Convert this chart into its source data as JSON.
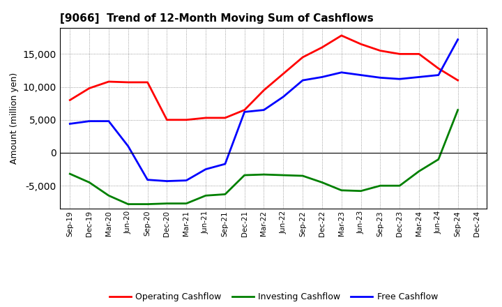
{
  "title": "[9066]  Trend of 12-Month Moving Sum of Cashflows",
  "ylabel": "Amount (million yen)",
  "x_labels": [
    "Sep-19",
    "Dec-19",
    "Mar-20",
    "Jun-20",
    "Sep-20",
    "Dec-20",
    "Mar-21",
    "Jun-21",
    "Sep-21",
    "Dec-21",
    "Mar-22",
    "Jun-22",
    "Sep-22",
    "Dec-22",
    "Mar-23",
    "Jun-23",
    "Sep-23",
    "Dec-23",
    "Mar-24",
    "Jun-24",
    "Sep-24",
    "Dec-24"
  ],
  "operating_cashflow": [
    8000,
    9800,
    10800,
    10700,
    10700,
    5000,
    5000,
    5300,
    5300,
    6500,
    9500,
    12000,
    14500,
    16000,
    17800,
    16500,
    15500,
    15000,
    15000,
    12800,
    11000,
    null
  ],
  "investing_cashflow": [
    -3200,
    -4500,
    -6500,
    -7800,
    -7800,
    -7700,
    -7700,
    -6500,
    -6300,
    -3400,
    -3300,
    -3400,
    -3500,
    -4500,
    -5700,
    -5800,
    -5000,
    -5000,
    -2800,
    -1000,
    6500,
    null
  ],
  "free_cashflow": [
    4400,
    4800,
    4800,
    1000,
    -4100,
    -4300,
    -4200,
    -2500,
    -1700,
    6200,
    6500,
    8500,
    11000,
    11500,
    12200,
    11800,
    11400,
    11200,
    11500,
    11800,
    17200,
    null
  ],
  "operating_color": "#FF0000",
  "investing_color": "#008000",
  "free_color": "#0000FF",
  "bg_color": "#FFFFFF",
  "plot_bg_color": "#FFFFFF",
  "ylim": [
    -8500,
    19000
  ],
  "yticks": [
    -5000,
    0,
    5000,
    10000,
    15000
  ],
  "legend_labels": [
    "Operating Cashflow",
    "Investing Cashflow",
    "Free Cashflow"
  ]
}
